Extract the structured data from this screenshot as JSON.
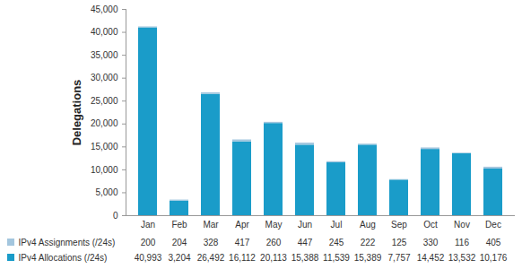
{
  "chart_data": {
    "type": "bar",
    "stacked": true,
    "y_label": "Delegations",
    "categories": [
      "Jan",
      "Feb",
      "Mar",
      "Apr",
      "May",
      "Jun",
      "Jul",
      "Aug",
      "Sep",
      "Oct",
      "Nov",
      "Dec"
    ],
    "series": [
      {
        "name": "IPv4 Assignments (/24s)",
        "color": "#a3c6de",
        "values": [
          200,
          204,
          328,
          417,
          260,
          447,
          245,
          222,
          125,
          330,
          116,
          405
        ],
        "value_labels": [
          "200",
          "204",
          "328",
          "417",
          "260",
          "447",
          "245",
          "222",
          "125",
          "330",
          "116",
          "405"
        ]
      },
      {
        "name": "IPv4 Allocations (/24s)",
        "color": "#1a9cc9",
        "values": [
          40993,
          3204,
          26492,
          16112,
          20113,
          15388,
          11539,
          15389,
          7757,
          14452,
          13532,
          10176
        ],
        "value_labels": [
          "40,993",
          "3,204",
          "26,492",
          "16,112",
          "20,113",
          "15,388",
          "11,539",
          "15,389",
          "7,757",
          "14,452",
          "13,532",
          "10,176"
        ]
      }
    ],
    "ylim": [
      0,
      45000
    ],
    "yticks": [
      0,
      {
        "value": 5000,
        "label": "5,000"
      },
      {
        "value": 10000,
        "label": "10,000"
      },
      {
        "value": 15000,
        "label": "15,000"
      },
      {
        "value": 20000,
        "label": "20,000"
      },
      {
        "value": 25000,
        "label": "25,000"
      },
      {
        "value": 30000,
        "label": "30,000"
      },
      {
        "value": 35000,
        "label": "35,000"
      },
      {
        "value": 40000,
        "label": "40,000"
      },
      {
        "value": 45000,
        "label": "45,000"
      }
    ],
    "grid": false
  }
}
